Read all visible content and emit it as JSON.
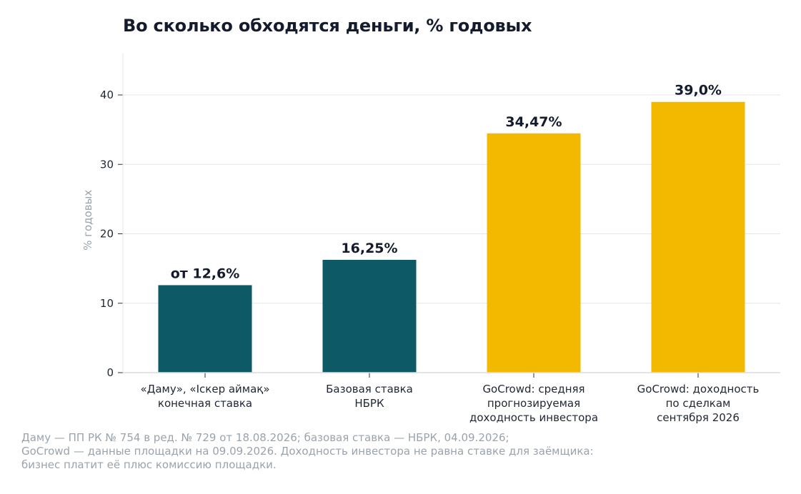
{
  "title": "Во сколько обходятся деньги, % годовых",
  "chart_data": {
    "type": "bar",
    "title": "Во сколько обходятся деньги, % годовых",
    "xlabel": "",
    "ylabel": "% годовых",
    "ylim": [
      0,
      46
    ],
    "yticks": [
      0,
      10,
      20,
      30,
      40
    ],
    "ytick_labels": [
      "0",
      "10",
      "20",
      "30",
      "40"
    ],
    "grid": "horizontal",
    "categories": [
      [
        "«Даму», «Іскер аймақ»",
        "конечная ставка"
      ],
      [
        "Базовая ставка",
        "НБРК"
      ],
      [
        "GoCrowd: средняя",
        "прогнозируемая",
        "доходность инвестора"
      ],
      [
        "GoCrowd: доходность",
        "по сделкам",
        "сентября 2026"
      ]
    ],
    "values": [
      12.6,
      16.25,
      34.47,
      39.0
    ],
    "data_labels": [
      "от 12,6%",
      "16,25%",
      "34,47%",
      "39,0%"
    ],
    "colors": [
      "#0d5966",
      "#0d5966",
      "#f2b900",
      "#f2b900"
    ]
  },
  "footnote": [
    "Даму — ПП РК № 754 в ред. № 729 от 18.08.2026; базовая ставка — НБРК, 04.09.2026;",
    "GoCrowd — данные площадки на 09.09.2026. Доходность инвестора не равна ставке для заёмщика:",
    "бизнес платит её плюс комиссию площадки."
  ]
}
